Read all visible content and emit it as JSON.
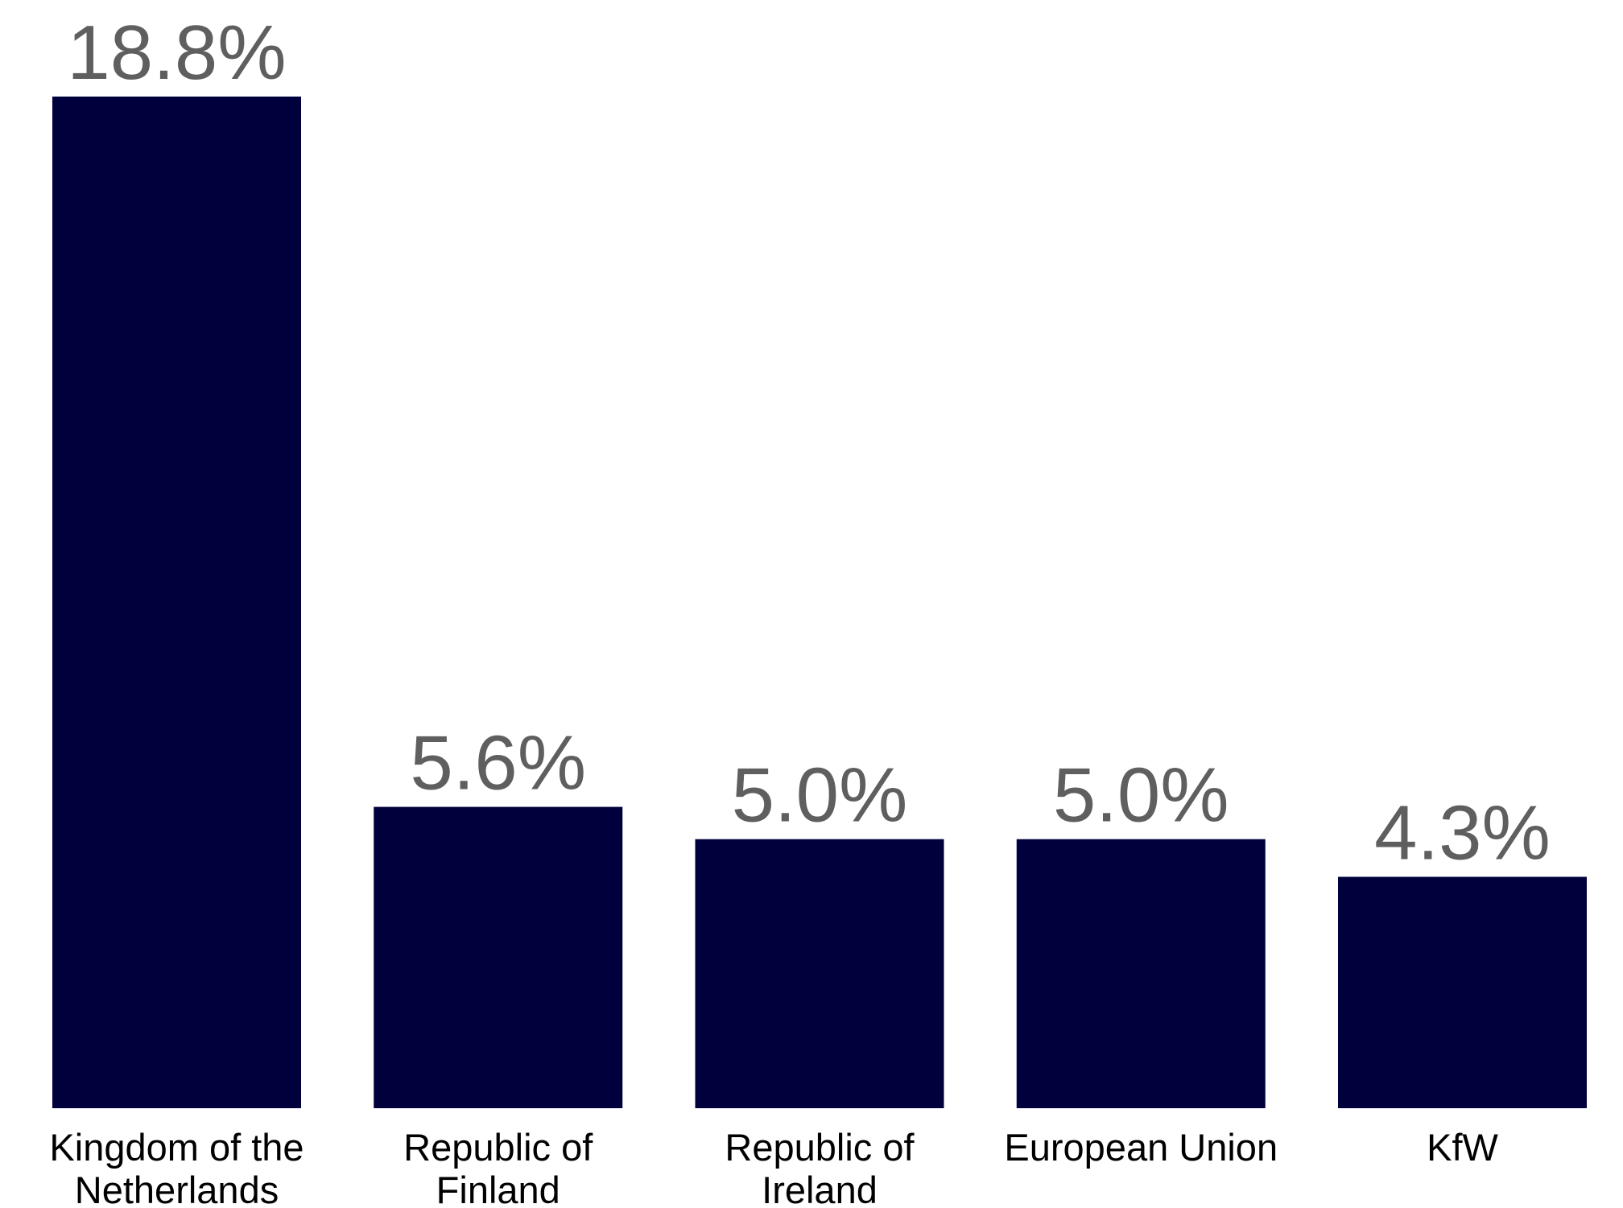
{
  "colors": {
    "bar": "#00003c",
    "data_label": "#5f5f5f",
    "tick_label": "#000000",
    "background": "#ffffff"
  },
  "chart_data": {
    "type": "bar",
    "categories": [
      [
        "Kingdom of the",
        "Netherlands"
      ],
      [
        "Republic of",
        "Finland"
      ],
      [
        "Republic of",
        "Ireland"
      ],
      [
        "European Union"
      ],
      [
        "KfW"
      ]
    ],
    "values": [
      18.8,
      5.6,
      5.0,
      5.0,
      4.3
    ],
    "data_labels": [
      "18.8%",
      "5.6%",
      "5.0%",
      "5.0%",
      "4.3%"
    ],
    "ylim": [
      0,
      18.8
    ],
    "grid": false,
    "legend": "none"
  }
}
